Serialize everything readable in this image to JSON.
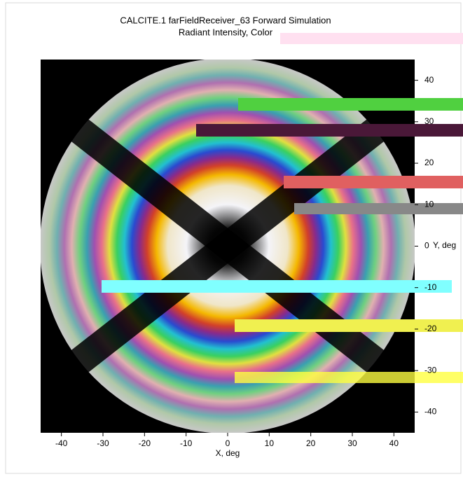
{
  "chart_data": {
    "type": "image",
    "title": "CALCITE.1 farFieldReceiver_63 Forward Simulation",
    "subtitle": "Radiant Intensity, Color",
    "xlabel": "X, deg",
    "ylabel": "Y, deg",
    "xlim": [
      -45,
      45
    ],
    "ylim": [
      -45,
      45
    ],
    "xticks": [
      -40,
      -30,
      -20,
      -10,
      0,
      10,
      20,
      30,
      40
    ],
    "yticks": [
      -40,
      -30,
      -20,
      -10,
      0,
      10,
      20,
      30,
      40
    ]
  }
}
